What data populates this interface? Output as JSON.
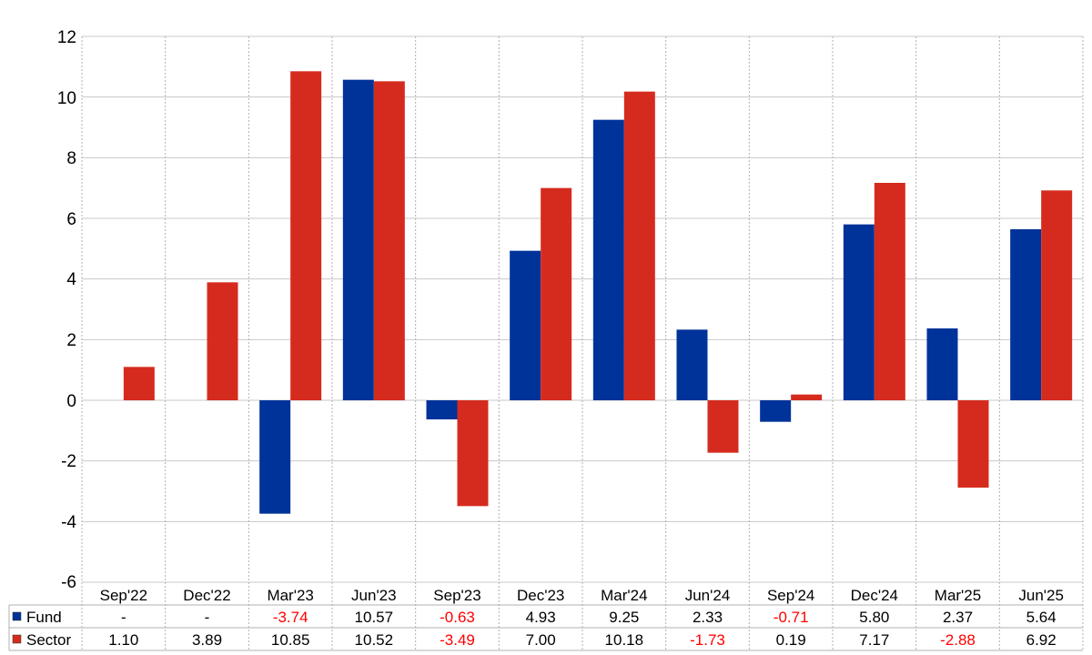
{
  "chart_data": {
    "type": "bar",
    "categories": [
      "Sep'22",
      "Dec'22",
      "Mar'23",
      "Jun'23",
      "Sep'23",
      "Dec'23",
      "Mar'24",
      "Jun'24",
      "Sep'24",
      "Dec'24",
      "Mar'25",
      "Jun'25"
    ],
    "series": [
      {
        "name": "Fund",
        "color": "#003399",
        "values": [
          null,
          null,
          -3.74,
          10.57,
          -0.63,
          4.93,
          9.25,
          2.33,
          -0.71,
          5.8,
          2.37,
          5.64
        ],
        "labels": [
          "-",
          "-",
          "-3.74",
          "10.57",
          "-0.63",
          "4.93",
          "9.25",
          "2.33",
          "-0.71",
          "5.80",
          "2.37",
          "5.64"
        ]
      },
      {
        "name": "Sector",
        "color": "#d52b1e",
        "values": [
          1.1,
          3.89,
          10.85,
          10.52,
          -3.49,
          7.0,
          10.18,
          -1.73,
          0.19,
          7.17,
          -2.88,
          6.92
        ],
        "labels": [
          "1.10",
          "3.89",
          "10.85",
          "10.52",
          "-3.49",
          "7.00",
          "10.18",
          "-1.73",
          "0.19",
          "7.17",
          "-2.88",
          "6.92"
        ]
      }
    ],
    "yticks": [
      "12",
      "10",
      "8",
      "6",
      "4",
      "2",
      "0",
      "-2",
      "-4",
      "-6"
    ],
    "ylim": [
      -6,
      12
    ],
    "grid": true,
    "negative_value_color": "#ff0000",
    "positive_value_color": "#000000",
    "legend": "data-table-left"
  }
}
